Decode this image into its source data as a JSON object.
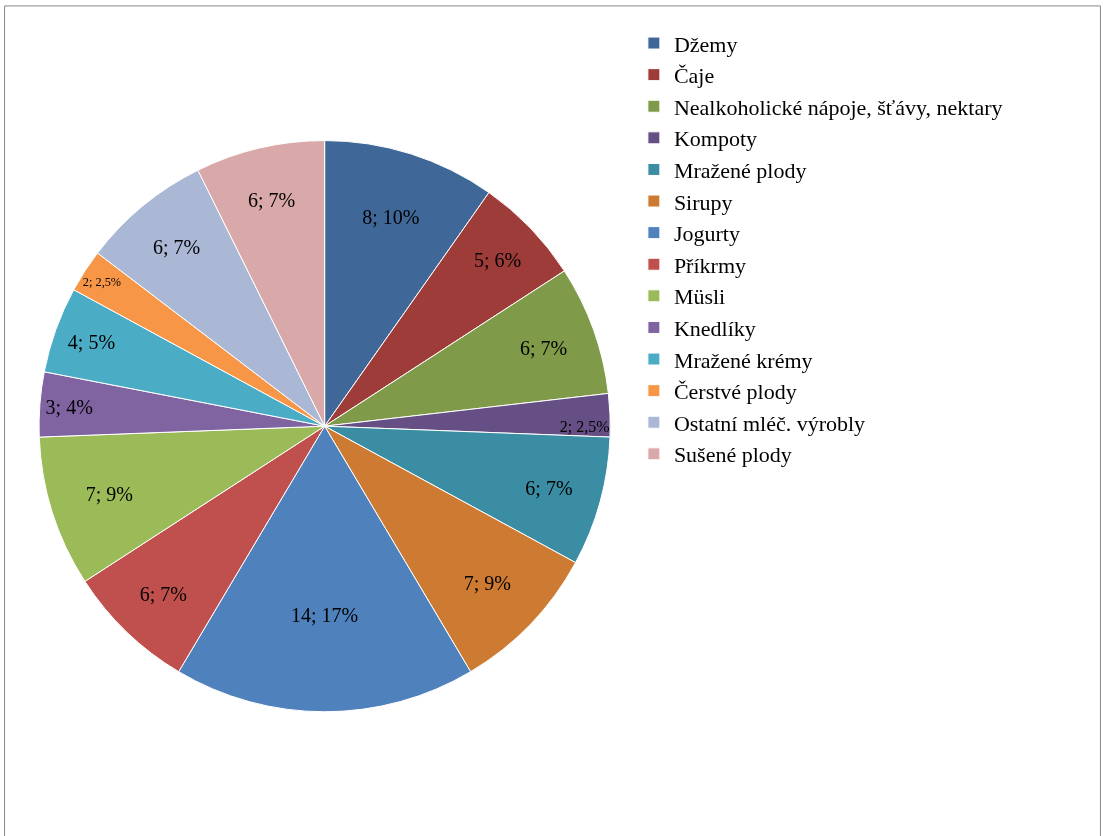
{
  "chart_data": {
    "type": "pie",
    "categories": [
      "Džemy",
      "Čaje",
      "Nealkoholické nápoje, šťávy, nektary",
      "Kompoty",
      "Mražené plody",
      "Sirupy",
      "Jogurty",
      "Příkrmy",
      "Müsli",
      "Knedlíky",
      "Mražené krémy",
      "Čerstvé plody",
      "Ostatní mléč. výrobly",
      "Sušené plody"
    ],
    "values": [
      8,
      5,
      6,
      2,
      6,
      7,
      14,
      6,
      7,
      3,
      4,
      2,
      6,
      6
    ],
    "value_labels": [
      "8; 10%",
      "5; 6%",
      "6; 7%",
      "2; 2,5%",
      "6; 7%",
      "7; 9%",
      "14; 17%",
      "6; 7%",
      "7; 9%",
      "3; 4%",
      "4; 5%",
      "2; 2,5%",
      "6; 7%",
      "6; 7%"
    ],
    "colors": [
      "#3f6797",
      "#9e3c3a",
      "#7f9a48",
      "#664f84",
      "#3b8da3",
      "#cd7a33",
      "#4f81bd",
      "#c0504d",
      "#9bbb59",
      "#8064a2",
      "#4bacc6",
      "#f79646",
      "#aab8d6",
      "#d9a9a9"
    ],
    "legend": "right"
  }
}
